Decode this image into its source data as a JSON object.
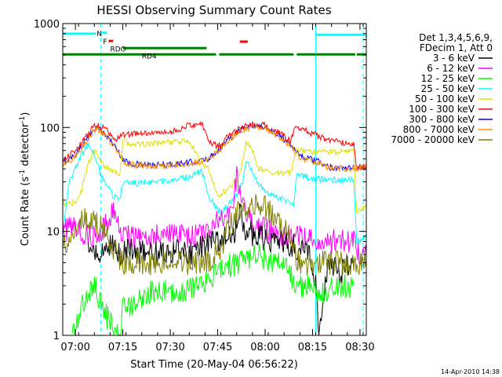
{
  "chart_data": {
    "type": "line",
    "title": "HESSI Observing Summary Count Rates",
    "xlabel": "Start Time (20-May-04 06:56:22)",
    "ylabel_main": "Count Rate (s",
    "ylabel_sup1": "-1",
    "ylabel_mid": " detector",
    "ylabel_sup2": "-1",
    "ylabel_end": ")",
    "footer": "14-Apr-2010 14:38",
    "y_scale": "log",
    "ylim": [
      1,
      1000
    ],
    "xlim_min": [
      0,
      96
    ],
    "x_ticks_min": [
      4,
      19,
      34,
      49,
      64,
      79,
      94
    ],
    "x_tick_labels": [
      "07:00",
      "07:15",
      "07:30",
      "07:45",
      "08:00",
      "08:15",
      "08:30"
    ],
    "y_ticks": [
      1,
      10,
      100,
      1000
    ],
    "y_tick_labels": [
      "1",
      "10",
      "100",
      "1000"
    ],
    "legend": {
      "header": [
        "Det 1,3,4,5,6,9,",
        "FDecim 1, Att 0"
      ],
      "entries": [
        {
          "label": "3 - 6 keV",
          "color": "#000000"
        },
        {
          "label": "6 - 12 keV",
          "color": "#ff00ff"
        },
        {
          "label": "12 - 25 keV",
          "color": "#00ff00"
        },
        {
          "label": "25 - 50 keV",
          "color": "#00ffff"
        },
        {
          "label": "50 - 100 keV",
          "color": "#e0e000"
        },
        {
          "label": "100 - 300 keV",
          "color": "#ff0000"
        },
        {
          "label": "300 - 800 keV",
          "color": "#0000ff"
        },
        {
          "label": "800 - 7000 keV",
          "color": "#ff8c00"
        },
        {
          "label": "7000 - 20000 keV",
          "color": "#808000"
        }
      ]
    },
    "flags": [
      {
        "label": "N",
        "color": "#00ffff",
        "x0": 10.5,
        "x1": 12.0,
        "level": 815
      },
      {
        "label": "F",
        "color": "#ff0000",
        "x0": 12.5,
        "x1": 14.0,
        "level": 680
      },
      {
        "label": "RDO",
        "color": "#008000",
        "x0": 19.0,
        "x1": 45.5,
        "level": 580
      },
      {
        "label": "RD4",
        "color": "#008000",
        "x0": 0.0,
        "x1": 96.0,
        "level": 505
      }
    ],
    "gaps": [
      [
        48.5,
        49.5
      ],
      [
        73.0,
        74.0
      ],
      [
        92.5,
        93.0
      ]
    ],
    "saa_bars": [
      {
        "x0": 0,
        "x1": 10.5,
        "level": 800
      },
      {
        "x0": 80,
        "x1": 96,
        "level": 780
      }
    ],
    "red_bar": {
      "x0": 56.0,
      "x1": 58.5,
      "level": 670
    },
    "event_lines": [
      {
        "x": 0.0,
        "style": "solid",
        "color": "#00ffff"
      },
      {
        "x": 12.0,
        "style": "dashed",
        "color": "#00ffff"
      },
      {
        "x": 80.0,
        "style": "solid",
        "color": "#00ffff"
      },
      {
        "x": 95.0,
        "style": "dashed",
        "color": "#00ffff"
      }
    ],
    "series": [
      {
        "name": "300 - 800 keV",
        "color": "#0000ff",
        "points": [
          [
            0,
            45
          ],
          [
            4,
            55
          ],
          [
            8,
            80
          ],
          [
            10,
            100
          ],
          [
            12,
            95
          ],
          [
            16,
            70
          ],
          [
            19,
            50
          ],
          [
            21,
            45
          ],
          [
            28,
            43
          ],
          [
            34,
            44
          ],
          [
            40,
            46
          ],
          [
            44,
            48
          ],
          [
            46,
            50
          ],
          [
            49,
            60
          ],
          [
            52,
            75
          ],
          [
            56,
            95
          ],
          [
            60,
            105
          ],
          [
            64,
            100
          ],
          [
            68,
            85
          ],
          [
            72,
            70
          ],
          [
            74,
            58
          ],
          [
            76,
            52
          ],
          [
            80,
            48
          ],
          [
            84,
            42
          ],
          [
            90,
            40
          ],
          [
            96,
            42
          ]
        ]
      },
      {
        "name": "100 - 300 keV",
        "color": "#ff0000",
        "points": [
          [
            0,
            48
          ],
          [
            4,
            60
          ],
          [
            8,
            85
          ],
          [
            10,
            105
          ],
          [
            12,
            102
          ],
          [
            14,
            98
          ],
          [
            16,
            75
          ],
          [
            19,
            85
          ],
          [
            22,
            87
          ],
          [
            28,
            88
          ],
          [
            34,
            90
          ],
          [
            40,
            105
          ],
          [
            44,
            110
          ],
          [
            46,
            75
          ],
          [
            49,
            65
          ],
          [
            52,
            80
          ],
          [
            56,
            98
          ],
          [
            60,
            108
          ],
          [
            64,
            105
          ],
          [
            68,
            90
          ],
          [
            72,
            75
          ],
          [
            74,
            105
          ],
          [
            76,
            95
          ],
          [
            80,
            85
          ],
          [
            84,
            75
          ],
          [
            88,
            72
          ],
          [
            92,
            70
          ],
          [
            93,
            40
          ],
          [
            96,
            42
          ]
        ]
      },
      {
        "name": "800 - 7000 keV",
        "color": "#ff8c00",
        "points": [
          [
            0,
            44
          ],
          [
            4,
            52
          ],
          [
            8,
            78
          ],
          [
            10,
            95
          ],
          [
            12,
            92
          ],
          [
            16,
            68
          ],
          [
            19,
            48
          ],
          [
            21,
            44
          ],
          [
            28,
            42
          ],
          [
            34,
            43
          ],
          [
            40,
            45
          ],
          [
            44,
            47
          ],
          [
            46,
            49
          ],
          [
            49,
            58
          ],
          [
            52,
            72
          ],
          [
            56,
            92
          ],
          [
            60,
            102
          ],
          [
            64,
            98
          ],
          [
            68,
            82
          ],
          [
            72,
            68
          ],
          [
            74,
            55
          ],
          [
            76,
            50
          ],
          [
            80,
            46
          ],
          [
            84,
            41
          ],
          [
            90,
            40
          ],
          [
            96,
            41
          ]
        ]
      },
      {
        "name": "50 - 100 keV",
        "color": "#e0e000",
        "points": [
          [
            0,
            18
          ],
          [
            4,
            19
          ],
          [
            6,
            25
          ],
          [
            8,
            45
          ],
          [
            10,
            60
          ],
          [
            12,
            48
          ],
          [
            14,
            40
          ],
          [
            16,
            37
          ],
          [
            18,
            36
          ],
          [
            19,
            75
          ],
          [
            22,
            68
          ],
          [
            28,
            70
          ],
          [
            34,
            72
          ],
          [
            40,
            75
          ],
          [
            44,
            45
          ],
          [
            46,
            40
          ],
          [
            49,
            22
          ],
          [
            52,
            25
          ],
          [
            56,
            35
          ],
          [
            58,
            70
          ],
          [
            60,
            60
          ],
          [
            62,
            40
          ],
          [
            64,
            38
          ],
          [
            68,
            37
          ],
          [
            72,
            36
          ],
          [
            74,
            60
          ],
          [
            78,
            58
          ],
          [
            82,
            60
          ],
          [
            88,
            58
          ],
          [
            92,
            60
          ],
          [
            93,
            15
          ],
          [
            96,
            18
          ]
        ]
      },
      {
        "name": "25 - 50 keV",
        "color": "#00ffff",
        "points": [
          [
            0,
            9
          ],
          [
            2,
            30
          ],
          [
            4,
            40
          ],
          [
            6,
            55
          ],
          [
            8,
            70
          ],
          [
            10,
            55
          ],
          [
            12,
            35
          ],
          [
            16,
            22
          ],
          [
            18,
            20
          ],
          [
            19,
            30
          ],
          [
            24,
            29
          ],
          [
            30,
            30
          ],
          [
            36,
            32
          ],
          [
            40,
            34
          ],
          [
            44,
            38
          ],
          [
            46,
            22
          ],
          [
            48,
            18
          ],
          [
            50,
            15
          ],
          [
            52,
            18
          ],
          [
            55,
            22
          ],
          [
            57,
            30
          ],
          [
            58,
            50
          ],
          [
            60,
            38
          ],
          [
            62,
            28
          ],
          [
            66,
            22
          ],
          [
            70,
            20
          ],
          [
            73,
            18
          ],
          [
            74,
            35
          ],
          [
            80,
            32
          ],
          [
            88,
            31
          ],
          [
            92,
            32
          ],
          [
            93,
            8
          ],
          [
            96,
            9
          ]
        ]
      },
      {
        "name": "6 - 12 keV",
        "color": "#ff00ff",
        "points": [
          [
            0,
            10
          ],
          [
            4,
            11
          ],
          [
            8,
            9
          ],
          [
            10,
            9
          ],
          [
            14,
            12
          ],
          [
            16,
            17
          ],
          [
            18,
            10
          ],
          [
            20,
            9
          ],
          [
            24,
            9
          ],
          [
            30,
            9
          ],
          [
            36,
            9
          ],
          [
            40,
            9
          ],
          [
            44,
            9
          ],
          [
            46,
            10
          ],
          [
            48,
            12
          ],
          [
            52,
            14
          ],
          [
            54,
            18
          ],
          [
            55,
            35
          ],
          [
            56,
            25
          ],
          [
            58,
            14
          ],
          [
            62,
            11
          ],
          [
            66,
            10
          ],
          [
            70,
            9
          ],
          [
            74,
            9
          ],
          [
            80,
            8
          ],
          [
            86,
            8
          ],
          [
            92,
            8
          ],
          [
            93,
            6
          ],
          [
            96,
            6
          ]
        ]
      },
      {
        "name": "3 - 6 keV",
        "color": "#000000",
        "points": [
          [
            8,
            8
          ],
          [
            10,
            7
          ],
          [
            12,
            6
          ],
          [
            14,
            8
          ],
          [
            16,
            7
          ],
          [
            18,
            6
          ],
          [
            20,
            7
          ],
          [
            24,
            6
          ],
          [
            28,
            7
          ],
          [
            32,
            6
          ],
          [
            36,
            7
          ],
          [
            40,
            6
          ],
          [
            44,
            7
          ],
          [
            48,
            8
          ],
          [
            52,
            9
          ],
          [
            54,
            9
          ],
          [
            56,
            15
          ],
          [
            58,
            10
          ],
          [
            62,
            9
          ],
          [
            66,
            8
          ],
          [
            70,
            8
          ],
          [
            74,
            7
          ],
          [
            78,
            6
          ],
          [
            80,
            3
          ],
          [
            81,
            1.2
          ],
          [
            82,
            2
          ],
          [
            84,
            5
          ],
          [
            88,
            4
          ],
          [
            92,
            5
          ]
        ]
      },
      {
        "name": "7000 - 20000 keV",
        "color": "#808000",
        "points": [
          [
            0,
            7
          ],
          [
            2,
            9
          ],
          [
            4,
            11
          ],
          [
            8,
            14
          ],
          [
            10,
            13
          ],
          [
            12,
            11
          ],
          [
            14,
            9
          ],
          [
            16,
            7
          ],
          [
            19,
            5
          ],
          [
            24,
            5
          ],
          [
            30,
            5
          ],
          [
            36,
            5
          ],
          [
            40,
            5
          ],
          [
            44,
            5
          ],
          [
            46,
            5
          ],
          [
            48,
            6
          ],
          [
            50,
            7
          ],
          [
            52,
            10
          ],
          [
            56,
            16
          ],
          [
            60,
            18
          ],
          [
            64,
            17
          ],
          [
            68,
            13
          ],
          [
            72,
            9
          ],
          [
            74,
            5
          ],
          [
            80,
            5
          ],
          [
            88,
            5
          ],
          [
            92,
            5
          ],
          [
            93,
            5
          ],
          [
            96,
            5
          ]
        ]
      },
      {
        "name": "12 - 25 keV",
        "color": "#00ff00",
        "points": [
          [
            3,
            1
          ],
          [
            4,
            1.2
          ],
          [
            6,
            2
          ],
          [
            8,
            2.5
          ],
          [
            10,
            3
          ],
          [
            12,
            2.2
          ],
          [
            14,
            1.5
          ],
          [
            16,
            1.2
          ],
          [
            18,
            1
          ],
          [
            19,
            1.8
          ],
          [
            22,
            2
          ],
          [
            26,
            2.5
          ],
          [
            30,
            2.8
          ],
          [
            34,
            2.5
          ],
          [
            40,
            2.8
          ],
          [
            44,
            3
          ],
          [
            46,
            3.5
          ],
          [
            48,
            4
          ],
          [
            52,
            4.5
          ],
          [
            56,
            5
          ],
          [
            60,
            6
          ],
          [
            64,
            5.5
          ],
          [
            68,
            5
          ],
          [
            72,
            4
          ],
          [
            74,
            3
          ],
          [
            78,
            3
          ],
          [
            80,
            2.5
          ],
          [
            84,
            2.8
          ],
          [
            88,
            3
          ],
          [
            92,
            3
          ]
        ]
      }
    ]
  }
}
